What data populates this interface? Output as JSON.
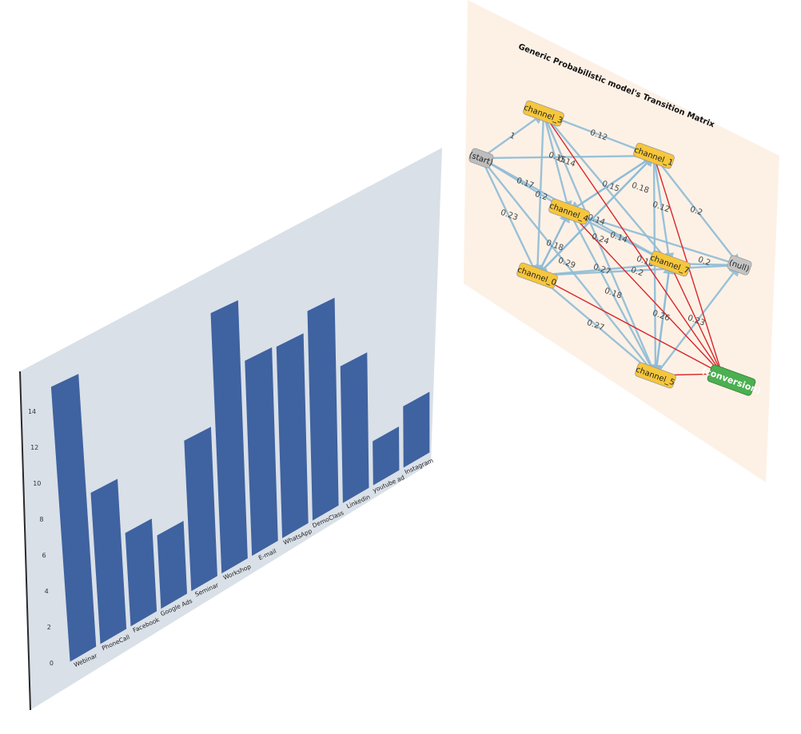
{
  "chart_data": [
    {
      "type": "bar",
      "title": "",
      "xlabel": "",
      "ylabel": "",
      "categories": [
        "Webinar",
        "PhoneCall",
        "Facebook",
        "Google Ads",
        "Seminar",
        "Workshop",
        "E-mail",
        "WhatsApp",
        "DemoClass",
        "Linkedin",
        "youtube ad",
        "Instagram"
      ],
      "values": [
        15.3,
        8.5,
        5.3,
        4.2,
        8.7,
        15.2,
        11.5,
        11.4,
        12.6,
        8.3,
        2.7,
        3.8
      ],
      "ylim": [
        0,
        16
      ],
      "yticks": [
        "0",
        "2",
        "4",
        "6",
        "8",
        "10",
        "12",
        "14"
      ],
      "grid": false,
      "colors": {
        "bar": "#3f62a0",
        "background": "#d9e0e8",
        "frame": "#5a5a5a"
      }
    },
    {
      "type": "diagram",
      "title": "Generic Probabilistic model's Transition Matrix",
      "nodes": [
        {
          "label": "(start)",
          "kind": "start"
        },
        {
          "label": "channel_3",
          "kind": "channel"
        },
        {
          "label": "channel_1",
          "kind": "channel"
        },
        {
          "label": "channel_4",
          "kind": "channel"
        },
        {
          "label": "channel_7",
          "kind": "channel"
        },
        {
          "label": "channel_0",
          "kind": "channel"
        },
        {
          "label": "channel_5",
          "kind": "channel"
        },
        {
          "label": "(null)",
          "kind": "null"
        },
        {
          "label": "(conversion)",
          "kind": "conversion"
        }
      ],
      "edge_labels": [
        "1",
        "0.12",
        "0.15",
        "0.14",
        "0.17",
        "0.2",
        "0.23",
        "0.15",
        "0.18",
        "0.12",
        "0.2",
        "0.14",
        "0.14",
        "0.24",
        "0.18",
        "0.29",
        "0.2",
        "0.27",
        "0.2",
        "0.18",
        "0.18",
        "0.26",
        "0.23",
        "0.27"
      ],
      "colors": {
        "background": "#fdf1e6",
        "channel": "#f6c63b",
        "start": "#bdbdbd",
        "null": "#c4c4c4",
        "conversion": "#4caf50",
        "edge": "#8fbcd6",
        "conversion_edge": "#d9262b"
      }
    }
  ]
}
